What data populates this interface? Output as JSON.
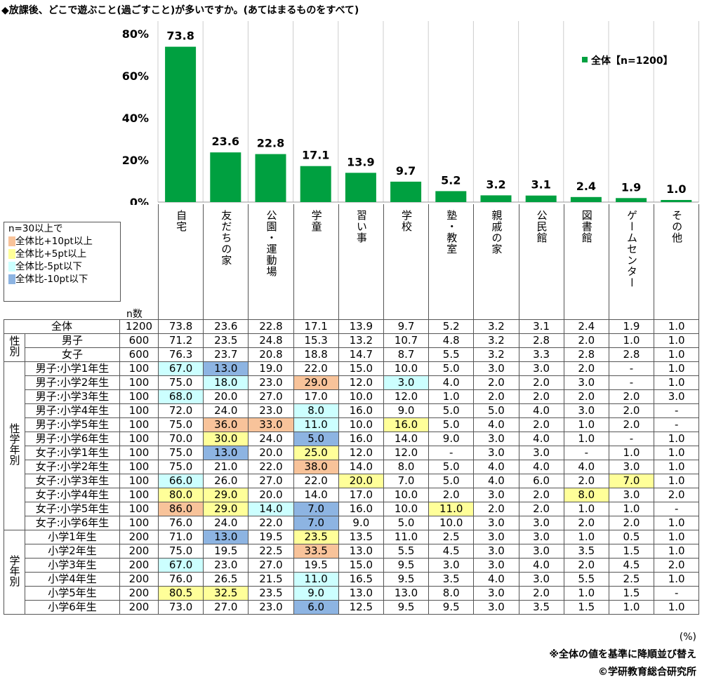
{
  "title": "◆放課後、どこで遊ぶこと(過ごすこと)が多いですか。(あてはまるものをすべて)",
  "chart_data": {
    "type": "bar",
    "title": "放課後、どこで遊ぶこと(過ごすこと)が多いですか。",
    "categories": [
      "自宅",
      "友だちの家",
      "公園・運動場",
      "学童",
      "習い事",
      "学校",
      "塾・教室",
      "親戚の家",
      "公民館",
      "図書館",
      "ゲームセンター",
      "その他"
    ],
    "series": [
      {
        "name": "全体【n=1200】",
        "values": [
          73.8,
          23.6,
          22.8,
          17.1,
          13.9,
          9.7,
          5.2,
          3.2,
          3.1,
          2.4,
          1.9,
          1.0
        ]
      }
    ],
    "value_labels": [
      "73.8",
      "23.6",
      "22.8",
      "17.1",
      "13.9",
      "9.7",
      "5.2",
      "3.2",
      "3.1",
      "2.4",
      "1.9",
      "1.0"
    ],
    "ylim": [
      0,
      80
    ],
    "yticks": [
      "0%",
      "20%",
      "40%",
      "60%",
      "80%"
    ],
    "legend": "top-right",
    "bar_color": "#00a040"
  },
  "legend_box": {
    "title": "n=30以上で",
    "items": [
      {
        "label": "全体比+10pt以上",
        "color": "#f8c39a"
      },
      {
        "label": "全体比+5pt以上",
        "color": "#ffff99"
      },
      {
        "label": "全体比-5pt以下",
        "color": "#ccffff"
      },
      {
        "label": "全体比-10pt以下",
        "color": "#8db4e2"
      }
    ]
  },
  "n_label": "n数",
  "groups": {
    "gender": "性別",
    "gender_grade": "性学年別",
    "grade": "学年別"
  },
  "rows": [
    {
      "label": "全体",
      "n": "1200",
      "v": [
        "73.8",
        "23.6",
        "22.8",
        "17.1",
        "13.9",
        "9.7",
        "5.2",
        "3.2",
        "3.1",
        "2.4",
        "1.9",
        "1.0"
      ],
      "h": "",
      "grp": "all"
    },
    {
      "label": "男子",
      "n": "600",
      "v": [
        "71.2",
        "23.5",
        "24.8",
        "15.3",
        "13.2",
        "10.7",
        "4.8",
        "3.2",
        "2.8",
        "2.0",
        "1.0",
        "1.0"
      ],
      "h": "",
      "grp": "gender"
    },
    {
      "label": "女子",
      "n": "600",
      "v": [
        "76.3",
        "23.7",
        "20.8",
        "18.8",
        "14.7",
        "8.7",
        "5.5",
        "3.2",
        "3.3",
        "2.8",
        "2.8",
        "1.0"
      ],
      "h": "",
      "grp": "gender"
    },
    {
      "label": "男子:小学1年生",
      "n": "100",
      "v": [
        "67.0",
        "13.0",
        "19.0",
        "22.0",
        "15.0",
        "10.0",
        "5.0",
        "3.0",
        "3.0",
        "2.0",
        "-",
        "1.0"
      ],
      "h": "cb..........",
      "grp": "gender_grade"
    },
    {
      "label": "男子:小学2年生",
      "n": "100",
      "v": [
        "75.0",
        "18.0",
        "23.0",
        "29.0",
        "12.0",
        "3.0",
        "4.0",
        "2.0",
        "2.0",
        "3.0",
        "-",
        "1.0"
      ],
      "h": ".c.o.c......",
      "grp": "gender_grade"
    },
    {
      "label": "男子:小学3年生",
      "n": "100",
      "v": [
        "68.0",
        "20.0",
        "27.0",
        "17.0",
        "10.0",
        "12.0",
        "1.0",
        "2.0",
        "2.0",
        "2.0",
        "2.0",
        "3.0"
      ],
      "h": "c...........",
      "grp": "gender_grade"
    },
    {
      "label": "男子:小学4年生",
      "n": "100",
      "v": [
        "72.0",
        "24.0",
        "23.0",
        "8.0",
        "16.0",
        "9.0",
        "5.0",
        "5.0",
        "4.0",
        "3.0",
        "2.0",
        "-"
      ],
      "h": "...c........",
      "grp": "gender_grade"
    },
    {
      "label": "男子:小学5年生",
      "n": "100",
      "v": [
        "75.0",
        "36.0",
        "33.0",
        "11.0",
        "10.0",
        "16.0",
        "5.0",
        "4.0",
        "2.0",
        "1.0",
        "2.0",
        "-"
      ],
      "h": ".ooc.y......",
      "grp": "gender_grade"
    },
    {
      "label": "男子:小学6年生",
      "n": "100",
      "v": [
        "70.0",
        "30.0",
        "24.0",
        "5.0",
        "16.0",
        "14.0",
        "9.0",
        "3.0",
        "4.0",
        "1.0",
        "-",
        "1.0"
      ],
      "h": ".y.b........",
      "grp": "gender_grade"
    },
    {
      "label": "女子:小学1年生",
      "n": "100",
      "v": [
        "75.0",
        "13.0",
        "20.0",
        "25.0",
        "12.0",
        "12.0",
        "-",
        "3.0",
        "3.0",
        "-",
        "1.0",
        "1.0"
      ],
      "h": ".b.y........",
      "grp": "gender_grade"
    },
    {
      "label": "女子:小学2年生",
      "n": "100",
      "v": [
        "75.0",
        "21.0",
        "22.0",
        "38.0",
        "14.0",
        "8.0",
        "5.0",
        "4.0",
        "4.0",
        "4.0",
        "3.0",
        "1.0"
      ],
      "h": "...o........",
      "grp": "gender_grade"
    },
    {
      "label": "女子:小学3年生",
      "n": "100",
      "v": [
        "66.0",
        "26.0",
        "27.0",
        "22.0",
        "20.0",
        "7.0",
        "5.0",
        "4.0",
        "6.0",
        "2.0",
        "7.0",
        "1.0"
      ],
      "h": "c...y.....y.",
      "grp": "gender_grade"
    },
    {
      "label": "女子:小学4年生",
      "n": "100",
      "v": [
        "80.0",
        "29.0",
        "20.0",
        "14.0",
        "17.0",
        "10.0",
        "2.0",
        "3.0",
        "2.0",
        "8.0",
        "3.0",
        "2.0"
      ],
      "h": "yy.......y..",
      "grp": "gender_grade"
    },
    {
      "label": "女子:小学5年生",
      "n": "100",
      "v": [
        "86.0",
        "29.0",
        "14.0",
        "7.0",
        "16.0",
        "10.0",
        "11.0",
        "2.0",
        "2.0",
        "1.0",
        "1.0",
        "-"
      ],
      "h": "oycb..y.....",
      "grp": "gender_grade"
    },
    {
      "label": "女子:小学6年生",
      "n": "100",
      "v": [
        "76.0",
        "24.0",
        "22.0",
        "7.0",
        "9.0",
        "5.0",
        "10.0",
        "3.0",
        "3.0",
        "2.0",
        "2.0",
        "1.0"
      ],
      "h": "...b........",
      "grp": "gender_grade"
    },
    {
      "label": "小学1年生",
      "n": "200",
      "v": [
        "71.0",
        "13.0",
        "19.5",
        "23.5",
        "13.5",
        "11.0",
        "2.5",
        "3.0",
        "3.0",
        "1.0",
        "0.5",
        "1.0"
      ],
      "h": ".b.y........",
      "grp": "grade"
    },
    {
      "label": "小学2年生",
      "n": "200",
      "v": [
        "75.0",
        "19.5",
        "22.5",
        "33.5",
        "13.0",
        "5.5",
        "4.5",
        "3.0",
        "3.0",
        "3.5",
        "1.5",
        "1.0"
      ],
      "h": "...o........",
      "grp": "grade"
    },
    {
      "label": "小学3年生",
      "n": "200",
      "v": [
        "67.0",
        "23.0",
        "27.0",
        "19.5",
        "15.0",
        "9.5",
        "3.0",
        "3.0",
        "4.0",
        "2.0",
        "4.5",
        "2.0"
      ],
      "h": "c...........",
      "grp": "grade"
    },
    {
      "label": "小学4年生",
      "n": "200",
      "v": [
        "76.0",
        "26.5",
        "21.5",
        "11.0",
        "16.5",
        "9.5",
        "3.5",
        "4.0",
        "3.0",
        "5.5",
        "2.5",
        "1.0"
      ],
      "h": "...c........",
      "grp": "grade"
    },
    {
      "label": "小学5年生",
      "n": "200",
      "v": [
        "80.5",
        "32.5",
        "23.5",
        "9.0",
        "13.0",
        "13.0",
        "8.0",
        "3.0",
        "2.0",
        "1.0",
        "1.5",
        "-"
      ],
      "h": "yy.c........",
      "grp": "grade"
    },
    {
      "label": "小学6年生",
      "n": "200",
      "v": [
        "73.0",
        "27.0",
        "23.0",
        "6.0",
        "12.5",
        "9.5",
        "9.5",
        "3.0",
        "3.5",
        "1.5",
        "1.0",
        "1.0"
      ],
      "h": "...b........",
      "grp": "grade"
    }
  ],
  "notes": {
    "unit": "(%)",
    "sort": "※全体の値を基準に降順並び替え",
    "copyright": "©学研教育総合研究所"
  }
}
